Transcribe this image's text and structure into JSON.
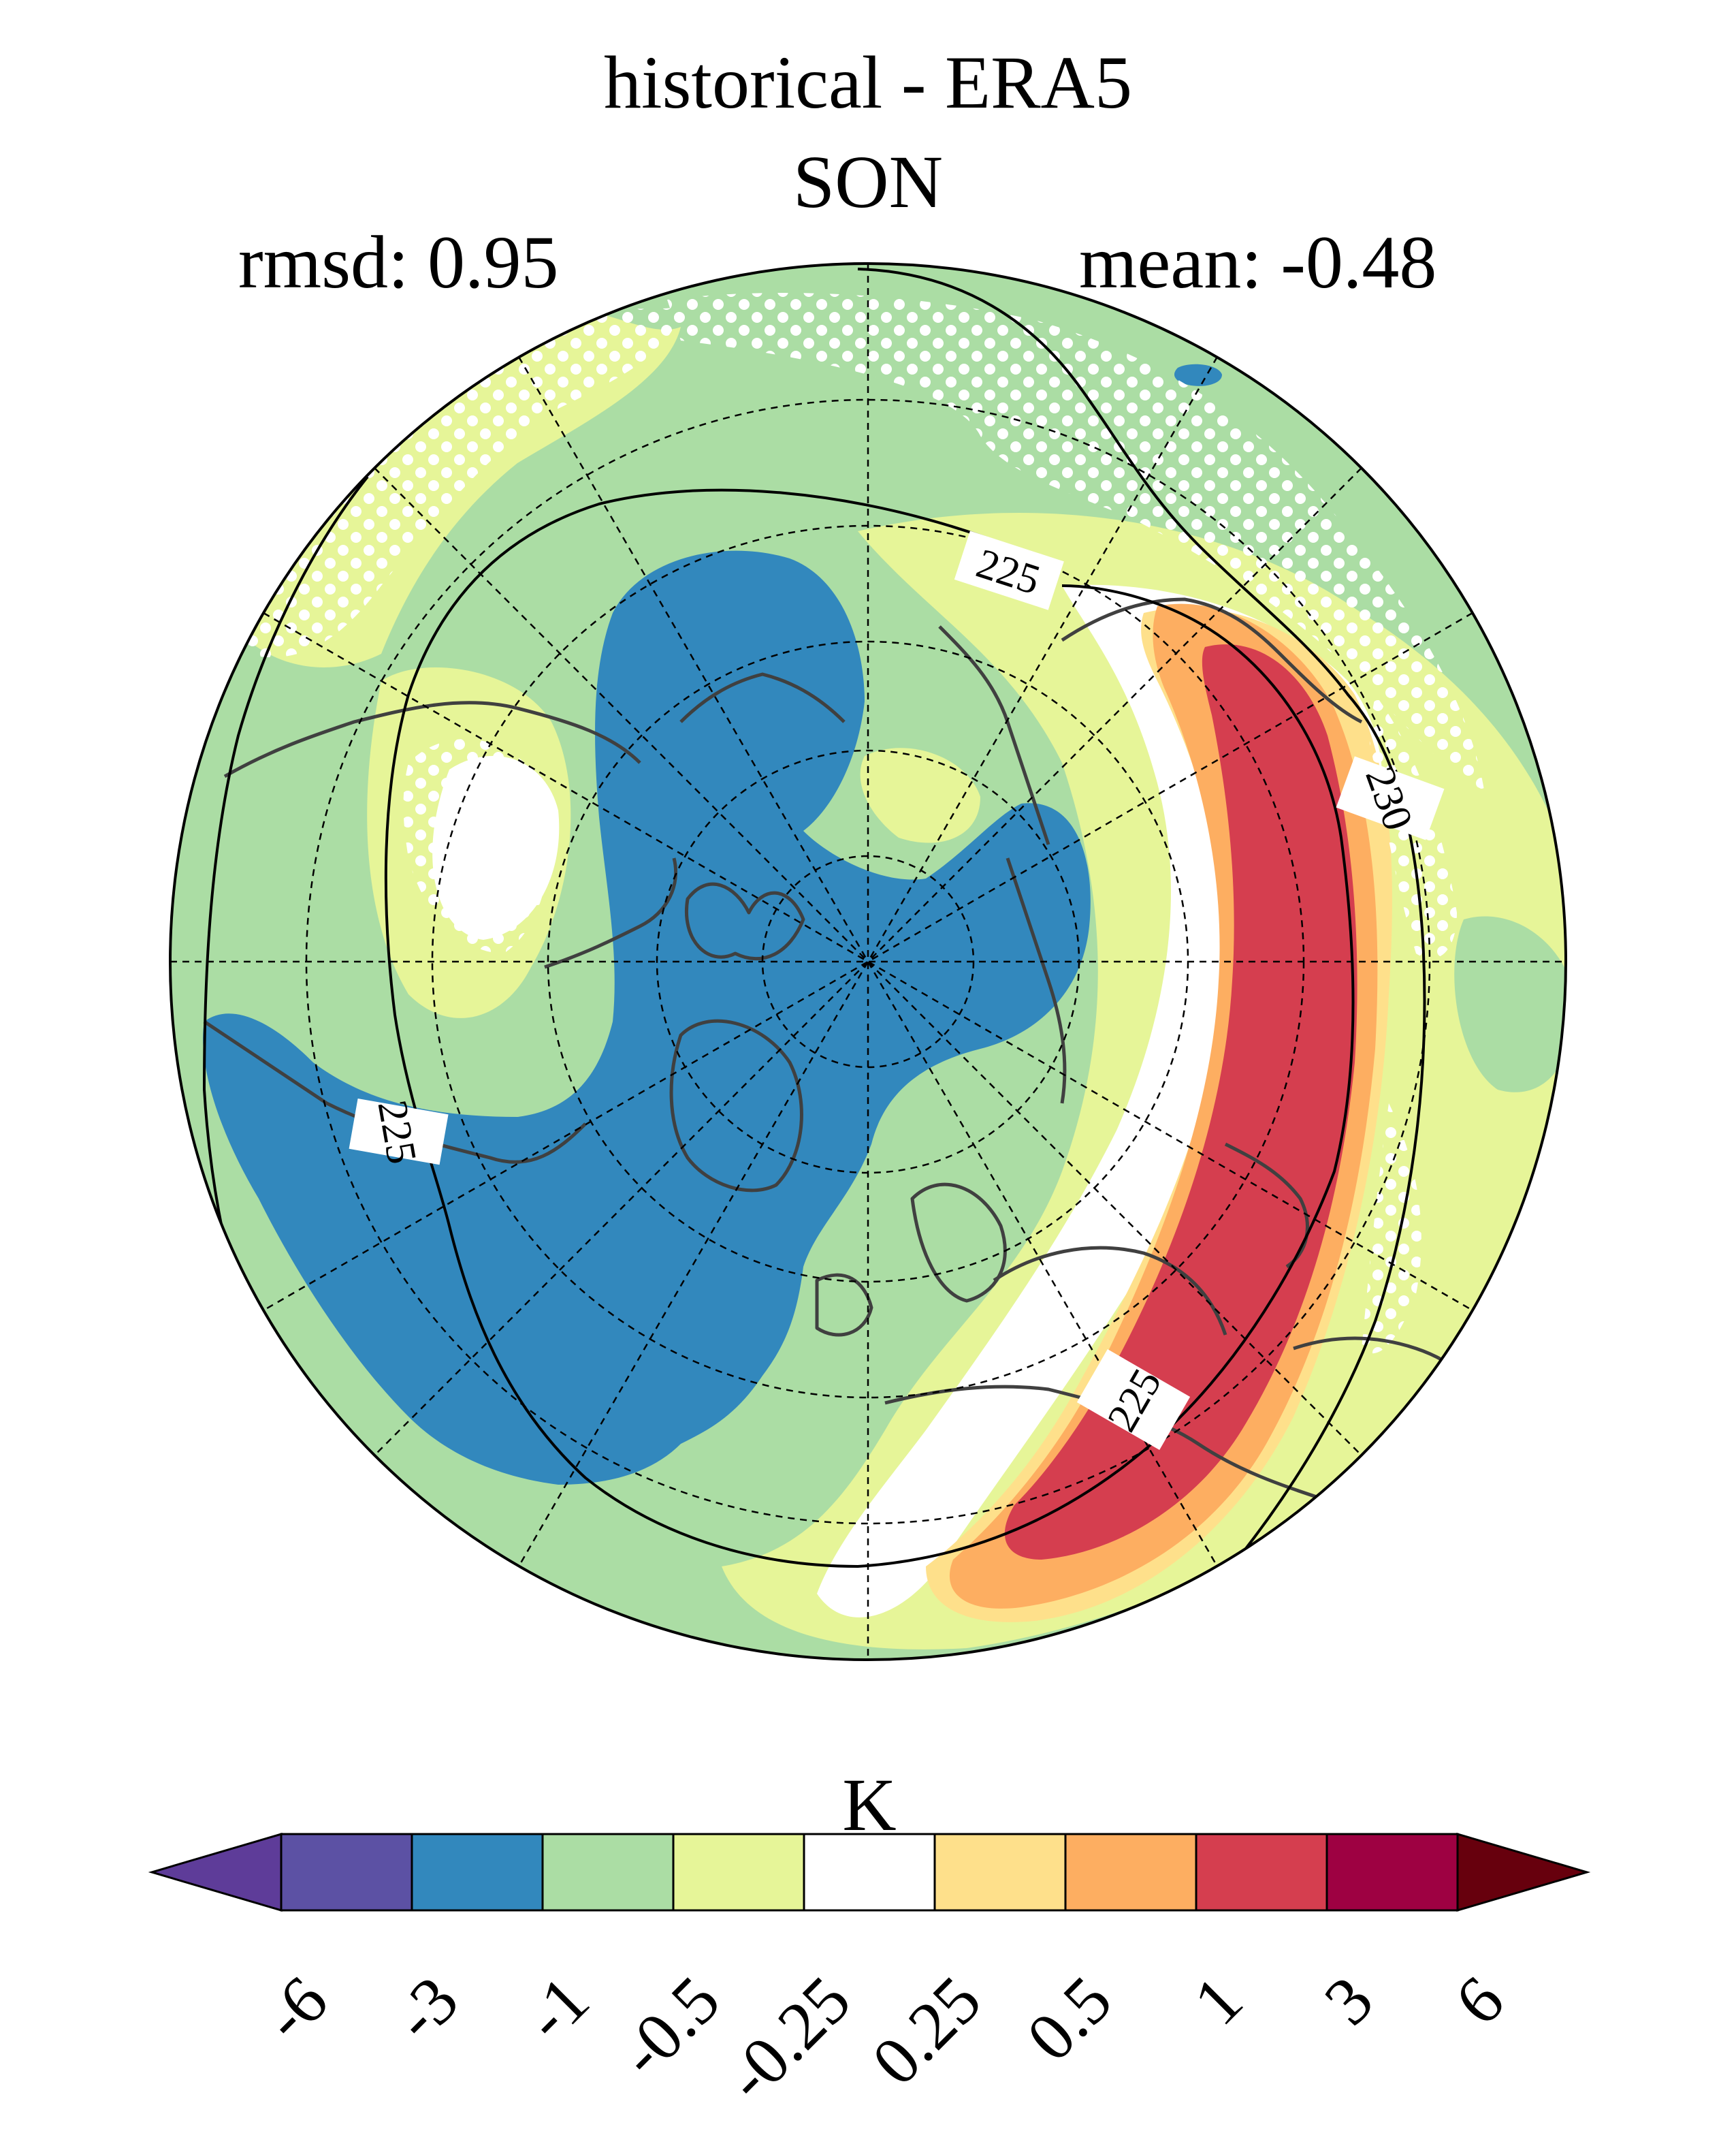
{
  "title": "historical - ERA5",
  "season": "SON",
  "stats": {
    "rmsd": "rmsd: 0.95",
    "mean": "mean: -0.48"
  },
  "map": {
    "projection": "north polar stereographic",
    "contour_labels": [
      "225",
      "225",
      "230",
      "225"
    ],
    "stippling": "white dots"
  },
  "colorbar": {
    "unit": "K",
    "ticks": [
      "-6",
      "-3",
      "-1",
      "-0.5",
      "-0.25",
      "0.25",
      "0.5",
      "1",
      "3",
      "6"
    ],
    "colors": [
      "#5e3c99",
      "#5c51a4",
      "#3288bd",
      "#abdda4",
      "#e6f598",
      "#ffffff",
      "#fee08b",
      "#fdae61",
      "#d53e4f",
      "#9e0142",
      "#67000d"
    ]
  }
}
